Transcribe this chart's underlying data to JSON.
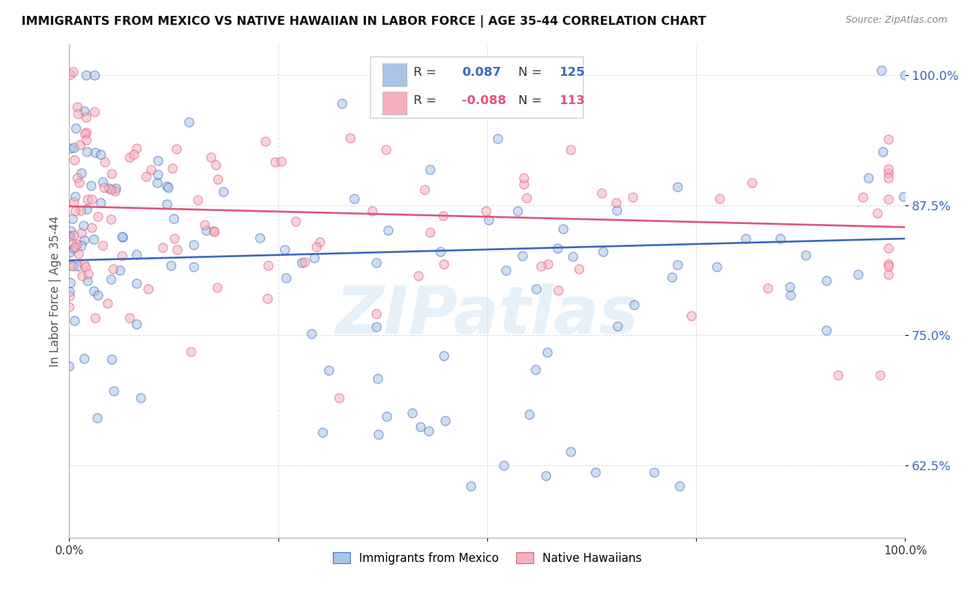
{
  "title": "IMMIGRANTS FROM MEXICO VS NATIVE HAWAIIAN IN LABOR FORCE | AGE 35-44 CORRELATION CHART",
  "source": "Source: ZipAtlas.com",
  "ylabel": "In Labor Force | Age 35-44",
  "ytick_labels": [
    "62.5%",
    "75.0%",
    "87.5%",
    "100.0%"
  ],
  "ytick_values": [
    0.625,
    0.75,
    0.875,
    1.0
  ],
  "xlim": [
    0.0,
    1.0
  ],
  "ylim": [
    0.555,
    1.03
  ],
  "blue_color": "#aac4e8",
  "blue_line_color": "#3a6abf",
  "pink_color": "#f5b0c0",
  "pink_line_color": "#e05578",
  "legend_blue_label": "Immigrants from Mexico",
  "legend_pink_label": "Native Hawaiians",
  "R_blue": 0.087,
  "N_blue": 125,
  "R_pink": -0.088,
  "N_pink": 113,
  "blue_trend_start": 0.822,
  "blue_trend_end": 0.843,
  "pink_trend_start": 0.874,
  "pink_trend_end": 0.854,
  "watermark": "ZIPatlas",
  "background_color": "#ffffff",
  "grid_color": "#dddddd",
  "marker_size": 90,
  "marker_alpha": 0.55
}
